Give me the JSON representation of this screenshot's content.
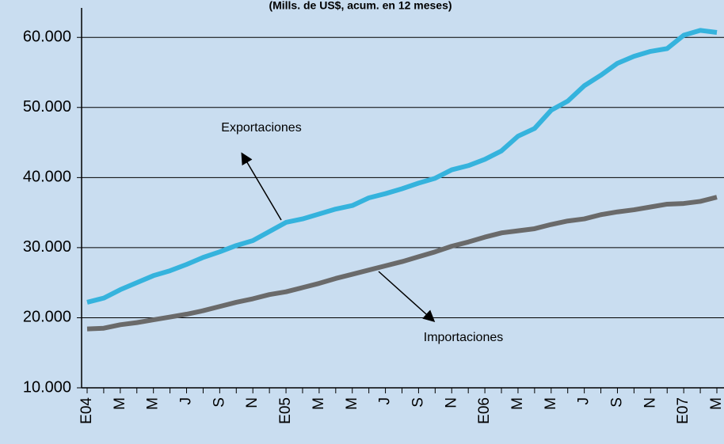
{
  "chart_data": {
    "type": "line",
    "title": "(Mills. de US$, acum. en 12 meses)",
    "categories": [
      "E04",
      null,
      "M",
      null,
      "M",
      null,
      "J",
      null,
      "S",
      null,
      "N",
      null,
      "E05",
      null,
      "M",
      null,
      "M",
      null,
      "J",
      null,
      "S",
      null,
      "N",
      null,
      "E06",
      null,
      "M",
      null,
      "M",
      null,
      "J",
      null,
      "S",
      null,
      "N",
      null,
      "E07",
      null,
      "M"
    ],
    "series": [
      {
        "name": "Exportaciones",
        "color": "#35b3dd",
        "values": [
          22200,
          22800,
          24000,
          25000,
          26000,
          26700,
          27600,
          28600,
          29400,
          30300,
          31000,
          32300,
          33600,
          34100,
          34800,
          35500,
          36000,
          37100,
          37700,
          38400,
          39200,
          39900,
          41100,
          41700,
          42600,
          43800,
          45900,
          47000,
          49600,
          50900,
          53100,
          54600,
          56300,
          57300,
          58000,
          58400,
          60300,
          61000,
          60700
        ]
      },
      {
        "name": "Importaciones",
        "color": "#6a6a6a",
        "values": [
          18400,
          18500,
          19000,
          19300,
          19700,
          20100,
          20500,
          21000,
          21600,
          22200,
          22700,
          23300,
          23700,
          24300,
          24900,
          25600,
          26200,
          26800,
          27400,
          28000,
          28700,
          29400,
          30200,
          30800,
          31500,
          32100,
          32400,
          32700,
          33300,
          33800,
          34100,
          34700,
          35100,
          35400,
          35800,
          36200,
          36300,
          36600,
          37200
        ]
      }
    ],
    "ylim": [
      10000,
      64200
    ],
    "yticks": [
      {
        "value": 10000,
        "label": "10.000"
      },
      {
        "value": 20000,
        "label": "20.000"
      },
      {
        "value": 30000,
        "label": "30.000"
      },
      {
        "value": 40000,
        "label": "40.000"
      },
      {
        "value": 50000,
        "label": "50.000"
      },
      {
        "value": 60000,
        "label": "60.000"
      }
    ],
    "grid": true
  }
}
